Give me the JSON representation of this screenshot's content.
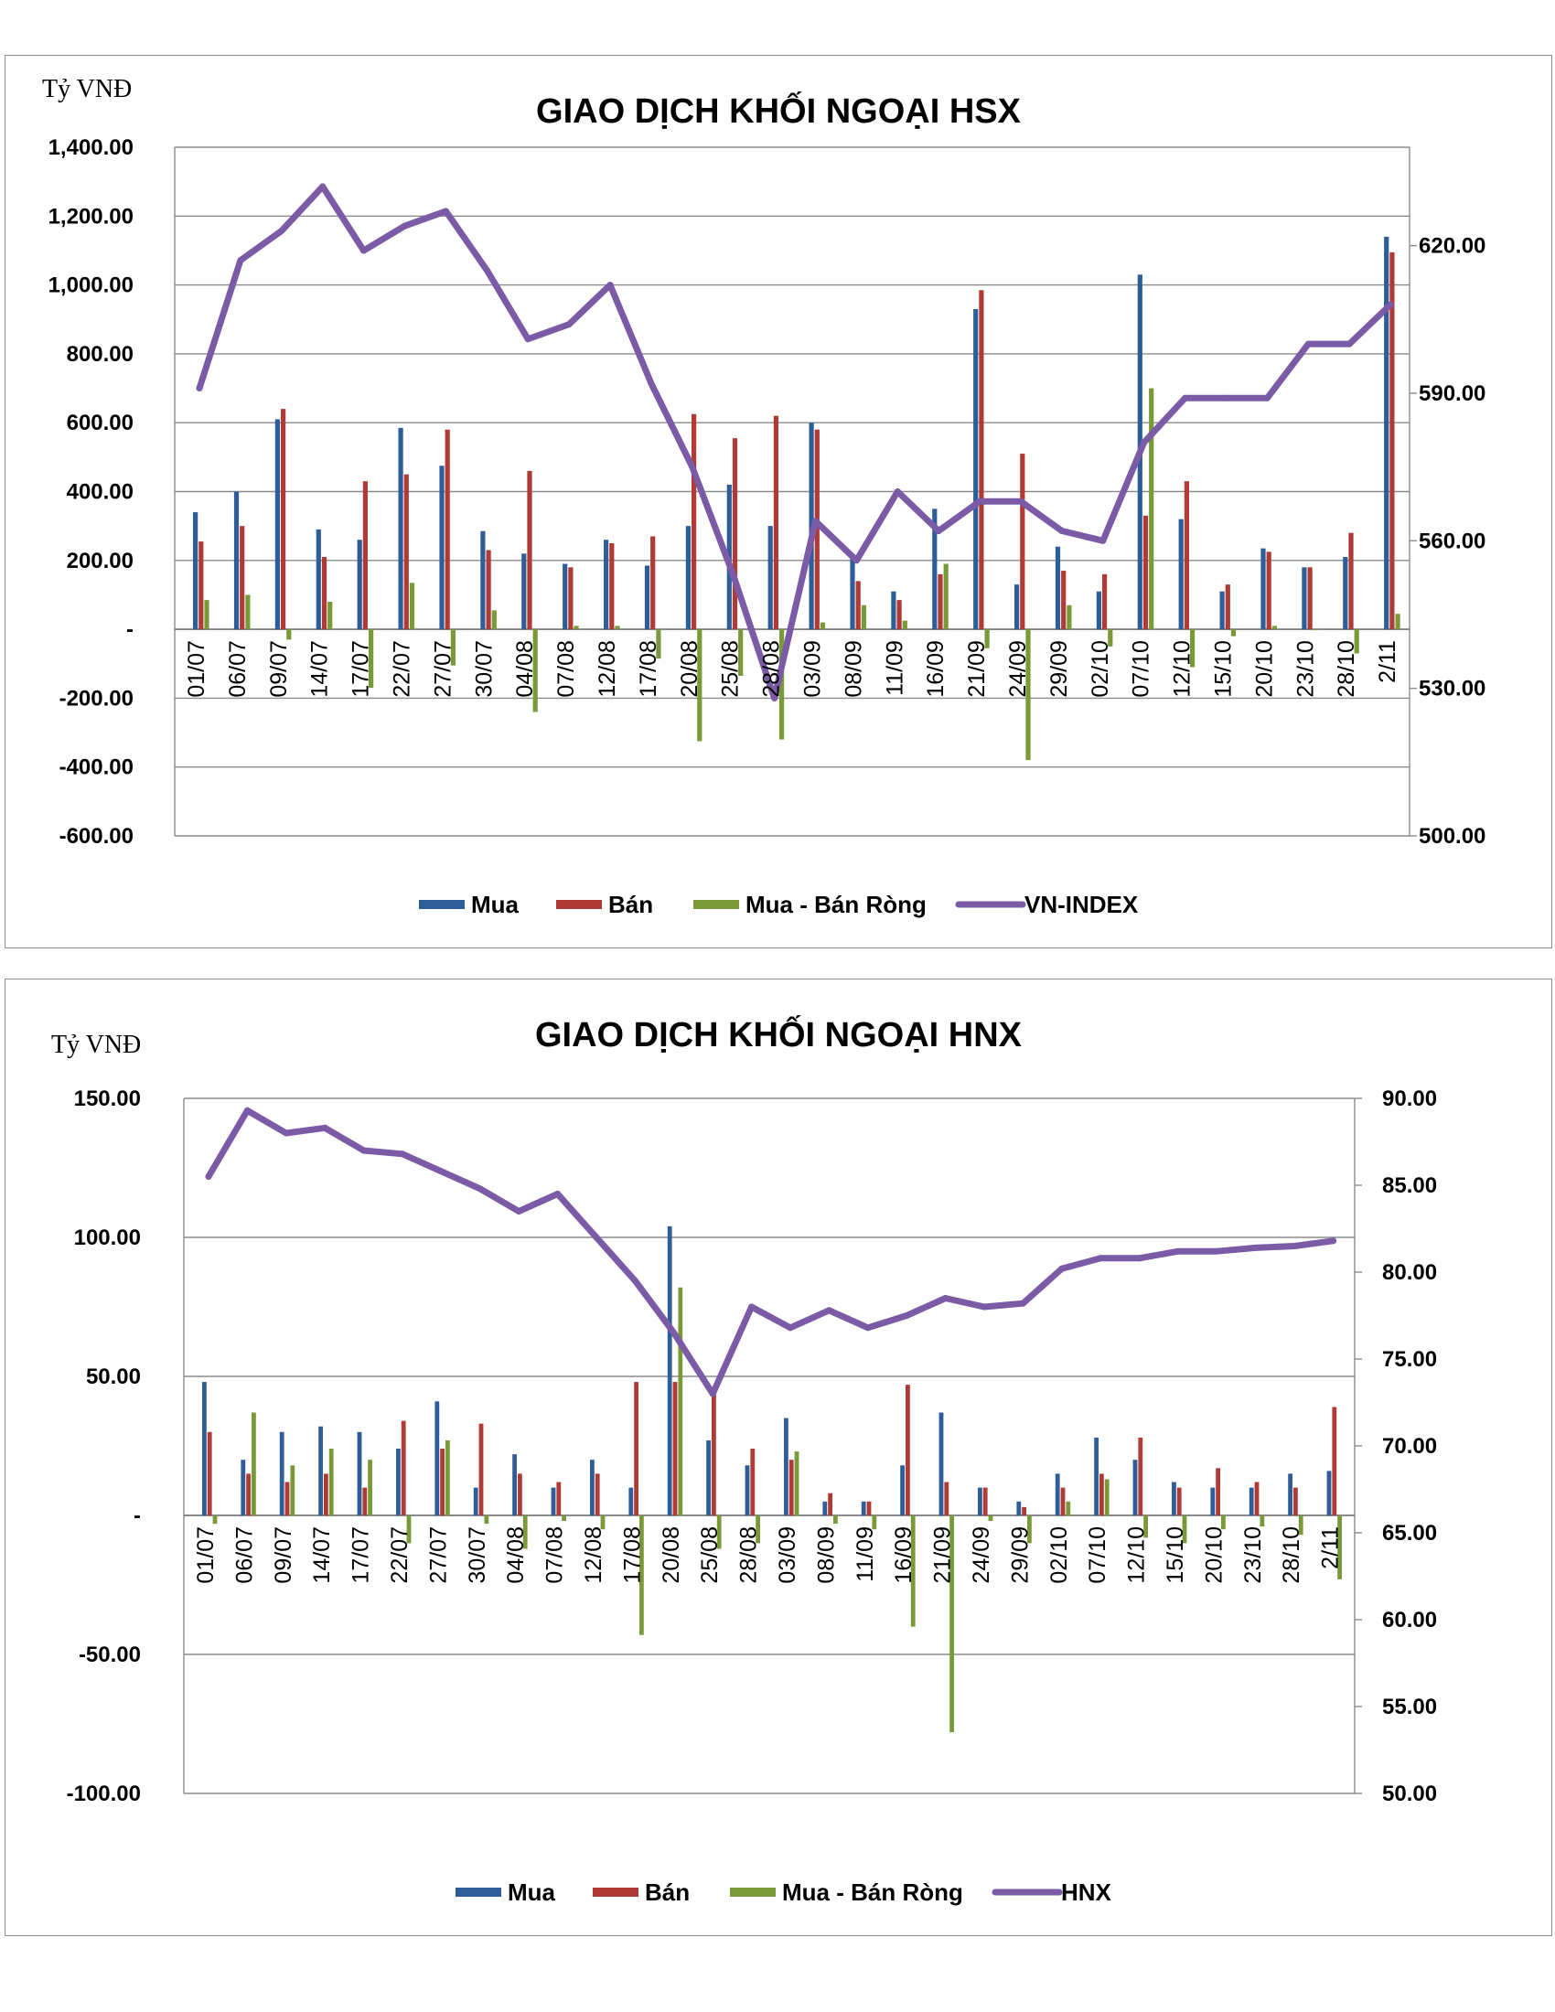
{
  "charts": [
    {
      "id": "hsx",
      "title": "GIAO DỊCH KHỐI NGOẠI HSX",
      "unit_label": "Tỷ VNĐ",
      "legend": [
        "Mua",
        "Bán",
        "Mua - Bán Ròng",
        "VN-INDEX"
      ],
      "left_axis_ticks": [
        "1,400.00",
        "1,200.00",
        "1,000.00",
        "800.00",
        "600.00",
        "400.00",
        "200.00",
        "-",
        "-200.00",
        "-400.00",
        "-600.00"
      ],
      "right_axis_ticks": [
        "620.00",
        "590.00",
        "560.00",
        "530.00",
        "500.00"
      ],
      "category_labels": [
        "01/07",
        "06/07",
        "09/07",
        "14/07",
        "17/07",
        "22/07",
        "27/07",
        "30/07",
        "04/08",
        "07/08",
        "12/08",
        "17/08",
        "20/08",
        "25/08",
        "28/08",
        "03/09",
        "08/09",
        "11/09",
        "16/09",
        "21/09",
        "24/09",
        "29/09",
        "02/10",
        "07/10",
        "12/10",
        "15/10",
        "20/10",
        "23/10",
        "28/10",
        "2/11"
      ]
    },
    {
      "id": "hnx",
      "title": "GIAO DỊCH KHỐI NGOẠI HNX",
      "unit_label": "Tỷ VNĐ",
      "legend": [
        "Mua",
        "Bán",
        "Mua - Bán Ròng",
        "HNX"
      ],
      "left_axis_ticks": [
        "150.00",
        "100.00",
        "50.00",
        "-",
        "-50.00",
        "-100.00"
      ],
      "right_axis_ticks": [
        "90.00",
        "85.00",
        "80.00",
        "75.00",
        "70.00",
        "65.00",
        "60.00",
        "55.00",
        "50.00"
      ],
      "category_labels": [
        "01/07",
        "06/07",
        "09/07",
        "14/07",
        "17/07",
        "22/07",
        "27/07",
        "30/07",
        "04/08",
        "07/08",
        "12/08",
        "17/08",
        "20/08",
        "25/08",
        "28/08",
        "03/09",
        "08/09",
        "11/09",
        "16/09",
        "21/09",
        "24/09",
        "29/09",
        "02/10",
        "07/10",
        "12/10",
        "15/10",
        "20/10",
        "23/10",
        "28/10",
        "2/11"
      ]
    }
  ],
  "colors": {
    "buy": "#2e5d9a",
    "sell": "#b03a36",
    "net": "#7a9a3a",
    "index": "#7b5aa6",
    "grid": "#8c8c8c"
  },
  "chart_data": [
    {
      "type": "bar",
      "title": "GIAO DỊCH KHỐI NGOẠI HSX",
      "ylabel": "Tỷ VNĐ",
      "ylim": [
        -600,
        1400
      ],
      "y2lim": [
        500,
        640
      ],
      "grid": true,
      "legend_position": "bottom",
      "categories": [
        "01/07",
        "06/07",
        "09/07",
        "14/07",
        "17/07",
        "22/07",
        "27/07",
        "30/07",
        "04/08",
        "07/08",
        "12/08",
        "17/08",
        "20/08",
        "25/08",
        "28/08",
        "03/09",
        "08/09",
        "11/09",
        "16/09",
        "21/09",
        "24/09",
        "29/09",
        "02/10",
        "07/10",
        "12/10",
        "15/10",
        "20/10",
        "23/10",
        "28/10",
        "2/11"
      ],
      "series": [
        {
          "name": "Mua",
          "kind": "bar",
          "values": [
            340,
            400,
            610,
            290,
            260,
            585,
            475,
            285,
            220,
            190,
            260,
            185,
            300,
            420,
            300,
            600,
            210,
            110,
            350,
            930,
            130,
            240,
            110,
            1030,
            320,
            110,
            235,
            180,
            210,
            1140
          ]
        },
        {
          "name": "Bán",
          "kind": "bar",
          "values": [
            255,
            300,
            640,
            210,
            430,
            450,
            580,
            230,
            460,
            180,
            250,
            270,
            625,
            555,
            620,
            580,
            140,
            85,
            160,
            985,
            510,
            170,
            160,
            330,
            430,
            130,
            225,
            180,
            280,
            1095
          ]
        },
        {
          "name": "Mua - Bán Ròng",
          "kind": "bar",
          "values": [
            85,
            100,
            -30,
            80,
            -170,
            135,
            -105,
            55,
            -240,
            10,
            10,
            -85,
            -325,
            -135,
            -320,
            20,
            70,
            25,
            190,
            -55,
            -380,
            70,
            -50,
            700,
            -110,
            -20,
            10,
            0,
            -70,
            45
          ]
        },
        {
          "name": "VN-INDEX",
          "kind": "line",
          "axis": "right",
          "values": [
            591,
            617,
            623,
            632,
            619,
            624,
            627,
            615,
            601,
            604,
            612,
            592,
            575,
            553,
            528,
            564,
            556,
            570,
            562,
            568,
            568,
            562,
            560,
            580,
            589,
            589,
            589,
            600,
            600,
            608
          ]
        }
      ]
    },
    {
      "type": "bar",
      "title": "GIAO DỊCH KHỐI NGOẠI HNX",
      "ylabel": "Tỷ VNĐ",
      "ylim": [
        -100,
        150
      ],
      "y2lim": [
        50,
        90
      ],
      "grid": true,
      "legend_position": "bottom",
      "categories": [
        "01/07",
        "06/07",
        "09/07",
        "14/07",
        "17/07",
        "22/07",
        "27/07",
        "30/07",
        "04/08",
        "07/08",
        "12/08",
        "17/08",
        "20/08",
        "25/08",
        "28/08",
        "03/09",
        "08/09",
        "11/09",
        "16/09",
        "21/09",
        "24/09",
        "29/09",
        "02/10",
        "07/10",
        "12/10",
        "15/10",
        "20/10",
        "23/10",
        "28/10",
        "2/11"
      ],
      "series": [
        {
          "name": "Mua",
          "kind": "bar",
          "values": [
            48,
            20,
            30,
            32,
            30,
            24,
            41,
            10,
            22,
            10,
            20,
            10,
            104,
            27,
            18,
            35,
            5,
            5,
            18,
            37,
            10,
            5,
            15,
            28,
            20,
            12,
            10,
            10,
            15,
            16
          ]
        },
        {
          "name": "Bán",
          "kind": "bar",
          "values": [
            30,
            15,
            12,
            15,
            10,
            34,
            24,
            33,
            15,
            12,
            15,
            48,
            48,
            46,
            24,
            20,
            8,
            5,
            47,
            12,
            10,
            3,
            10,
            15,
            28,
            10,
            17,
            12,
            10,
            39
          ]
        },
        {
          "name": "Mua - Bán Ròng",
          "kind": "bar",
          "values": [
            -3,
            37,
            18,
            24,
            20,
            -10,
            27,
            -3,
            -12,
            -2,
            -5,
            -43,
            82,
            -12,
            -10,
            23,
            -3,
            -5,
            -40,
            -78,
            -2,
            -10,
            5,
            13,
            -8,
            -10,
            -5,
            -4,
            -7,
            -23
          ]
        },
        {
          "name": "HNX",
          "kind": "line",
          "axis": "right",
          "values": [
            85.5,
            89.3,
            88.0,
            88.3,
            87.0,
            86.8,
            85.8,
            84.8,
            83.5,
            84.5,
            82.0,
            79.5,
            76.5,
            73.0,
            78.0,
            76.8,
            77.8,
            76.8,
            77.5,
            78.5,
            78.0,
            78.2,
            80.2,
            80.8,
            80.8,
            81.2,
            81.2,
            81.4,
            81.5,
            81.8
          ]
        }
      ]
    }
  ]
}
